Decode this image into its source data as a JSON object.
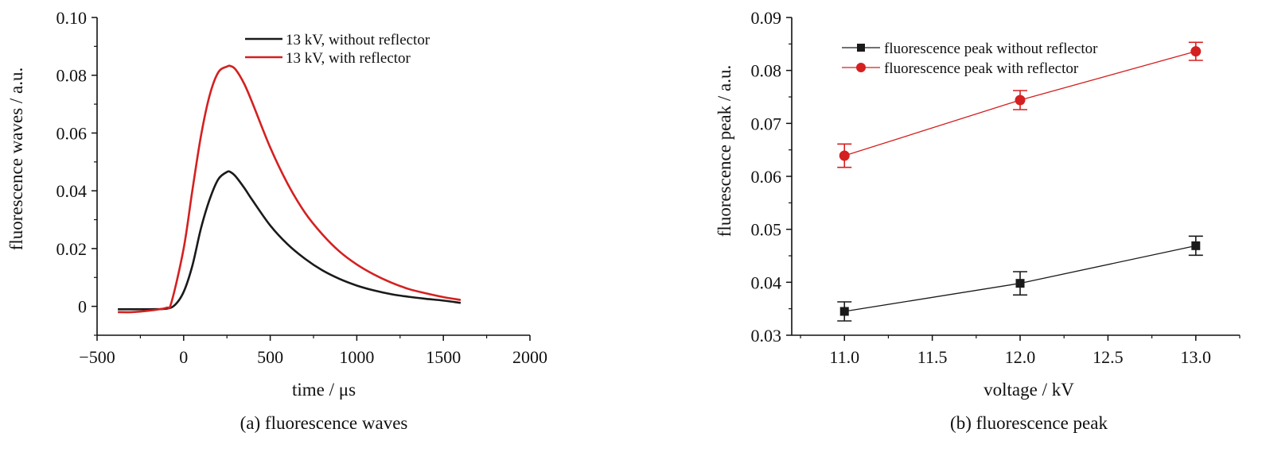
{
  "chart_data": [
    {
      "type": "line",
      "caption": "(a) fluorescence waves",
      "xlabel": "time / μs",
      "ylabel": "fluorescence waves / a.u.",
      "xlim": [
        -500,
        2000
      ],
      "ylim": [
        -0.01,
        0.1
      ],
      "xticks": [
        -500,
        0,
        500,
        1000,
        1500,
        2000
      ],
      "xtick_labels": [
        "−500",
        "0",
        "500",
        "1000",
        "1500",
        "2000"
      ],
      "yticks": [
        0,
        0.02,
        0.04,
        0.06,
        0.08,
        0.1
      ],
      "ytick_labels": [
        "0",
        "0.02",
        "0.04",
        "0.06",
        "0.08",
        "0.10"
      ],
      "grid": false,
      "legend": "top-right",
      "series": [
        {
          "name": "13 kV, without reflector",
          "color": "#1a1a1a",
          "x": [
            -380,
            -300,
            -200,
            -100,
            -50,
            0,
            50,
            100,
            150,
            200,
            250,
            270,
            300,
            350,
            400,
            500,
            600,
            700,
            800,
            900,
            1000,
            1100,
            1200,
            1300,
            1400,
            1500,
            1600
          ],
          "y": [
            -0.001,
            -0.001,
            -0.001,
            -0.0008,
            0.0005,
            0.005,
            0.014,
            0.027,
            0.037,
            0.044,
            0.0465,
            0.0465,
            0.045,
            0.041,
            0.0365,
            0.028,
            0.0215,
            0.0165,
            0.0125,
            0.0095,
            0.0072,
            0.0055,
            0.0042,
            0.0033,
            0.0026,
            0.002,
            0.0012
          ]
        },
        {
          "name": "13 kV, with reflector",
          "color": "#d42020",
          "x": [
            -380,
            -300,
            -200,
            -100,
            -70,
            0,
            50,
            100,
            150,
            200,
            250,
            270,
            300,
            350,
            400,
            500,
            600,
            700,
            800,
            900,
            1000,
            1100,
            1200,
            1300,
            1400,
            1500,
            1600
          ],
          "y": [
            -0.002,
            -0.002,
            -0.0015,
            -0.0005,
            0.0015,
            0.02,
            0.04,
            0.059,
            0.073,
            0.081,
            0.083,
            0.0832,
            0.082,
            0.077,
            0.07,
            0.055,
            0.0425,
            0.0325,
            0.025,
            0.019,
            0.0145,
            0.011,
            0.0082,
            0.006,
            0.0045,
            0.0032,
            0.0022
          ]
        }
      ]
    },
    {
      "type": "line",
      "caption": "(b) fluorescence peak",
      "xlabel": "voltage / kV",
      "ylabel": "fluorescence peak / a.u.",
      "xlim": [
        10.7,
        13.25
      ],
      "ylim": [
        0.03,
        0.09
      ],
      "xticks": [
        11.0,
        11.5,
        12.0,
        12.5,
        13.0
      ],
      "xtick_labels": [
        "11.0",
        "11.5",
        "12.0",
        "12.5",
        "13.0"
      ],
      "yticks": [
        0.03,
        0.04,
        0.05,
        0.06,
        0.07,
        0.08,
        0.09
      ],
      "ytick_labels": [
        "0.03",
        "0.04",
        "0.05",
        "0.06",
        "0.07",
        "0.08",
        "0.09"
      ],
      "grid": false,
      "legend": "top-left",
      "series": [
        {
          "name": "fluorescence peak without reflector",
          "color": "#1a1a1a",
          "marker": "square",
          "x": [
            11.0,
            12.0,
            13.0
          ],
          "y": [
            0.0345,
            0.0398,
            0.0469
          ],
          "error": [
            0.0018,
            0.0022,
            0.0018
          ]
        },
        {
          "name": "fluorescence peak with reflector",
          "color": "#d42020",
          "marker": "circle",
          "x": [
            11.0,
            12.0,
            13.0
          ],
          "y": [
            0.0639,
            0.0744,
            0.0836
          ],
          "error": [
            0.0022,
            0.0018,
            0.0017
          ]
        }
      ]
    }
  ]
}
